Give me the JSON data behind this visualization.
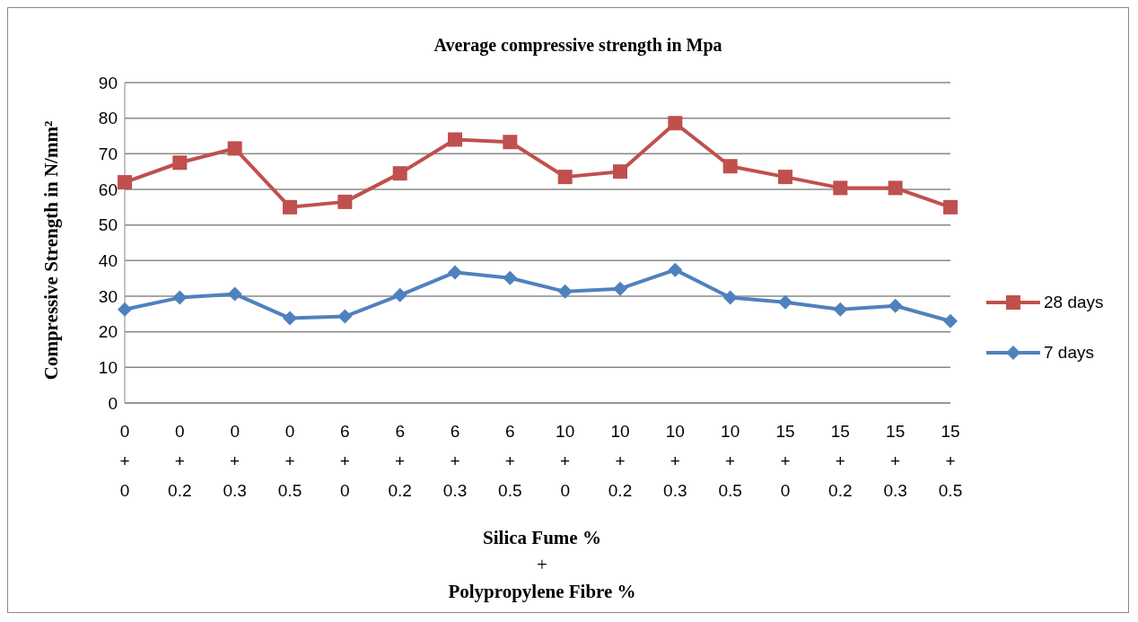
{
  "chart_data": {
    "type": "line",
    "title": "Average compressive strength in Mpa",
    "xlabel": "Silica Fume %\n+\nPolypropylene Fibre %",
    "ylabel": "Compressive Strength in N/mm²",
    "categories": [
      "0\n+\n0",
      "0\n+\n0.2",
      "0\n+\n0.3",
      "0\n+\n0.5",
      "6\n+\n0",
      "6\n+\n0.2",
      "6\n+\n0.3",
      "6\n+\n0.5",
      "10\n+\n0",
      "10\n+\n0.2",
      "10\n+\n0.3",
      "10\n+\n0.5",
      "15\n+\n0",
      "15\n+\n0.2",
      "15\n+\n0.3",
      "15\n+\n0.5"
    ],
    "series": [
      {
        "name": "28 days",
        "color": "#c0504d",
        "marker": "square",
        "values": [
          62,
          67.5,
          71.5,
          55,
          56.5,
          64.5,
          74,
          73.3,
          63.5,
          65,
          78.6,
          66.5,
          63.5,
          60.4,
          60.4,
          55
        ]
      },
      {
        "name": "7 days",
        "color": "#4f81bd",
        "marker": "diamond",
        "values": [
          26.3,
          29.6,
          30.6,
          23.8,
          24.3,
          30.3,
          36.7,
          35.1,
          31.3,
          32.1,
          37.4,
          29.6,
          28.3,
          26.3,
          27.3,
          23
        ]
      }
    ],
    "ylim": [
      0,
      90
    ],
    "yticks": [
      0,
      10,
      20,
      30,
      40,
      50,
      60,
      70,
      80,
      90
    ],
    "grid": "y",
    "legend": "right",
    "line_style": "solid"
  }
}
